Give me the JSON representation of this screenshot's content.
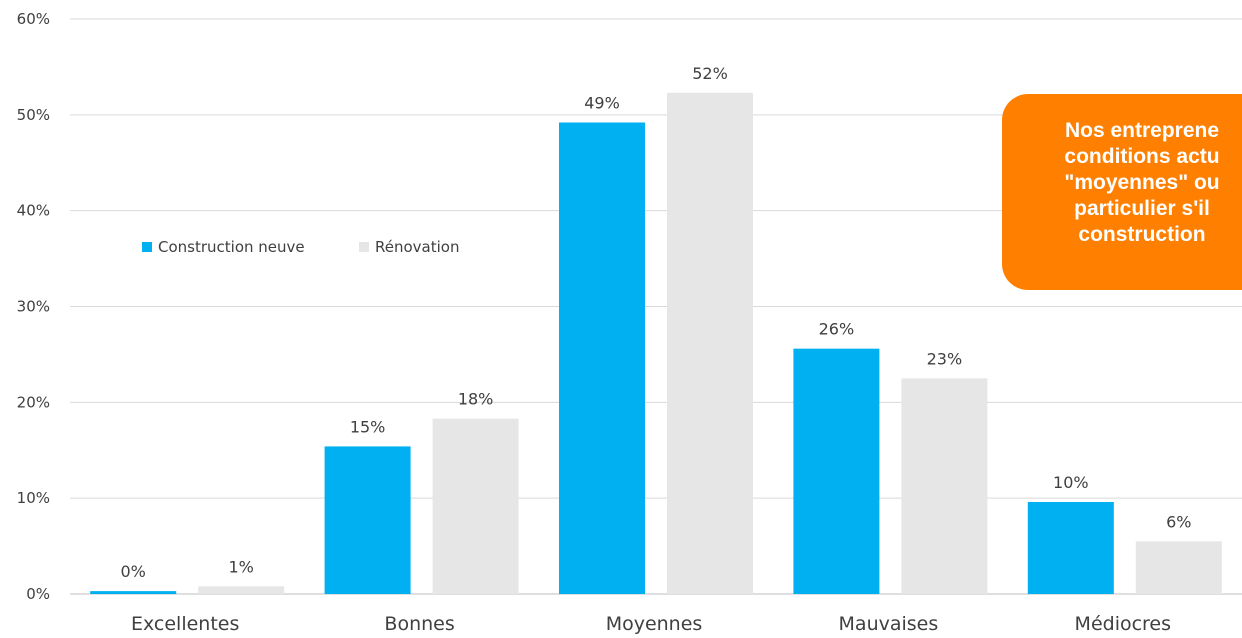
{
  "chart_data": {
    "type": "bar",
    "categories": [
      "Excellentes",
      "Bonnes",
      "Moyennes",
      "Mauvaises",
      "Médiocres"
    ],
    "series": [
      {
        "name": "Construction neuve",
        "color": "#00b0f0",
        "values": [
          0.3,
          15.4,
          49.2,
          25.6,
          9.6
        ],
        "labels": [
          "0%",
          "15%",
          "49%",
          "26%",
          "10%"
        ]
      },
      {
        "name": "Rénovation",
        "color": "#e7e6e6",
        "values": [
          0.8,
          18.3,
          52.3,
          22.5,
          5.5
        ],
        "labels": [
          "1%",
          "18%",
          "52%",
          "23%",
          "6%"
        ]
      }
    ],
    "yticks": [
      "0%",
      "10%",
      "20%",
      "30%",
      "40%",
      "50%",
      "60%"
    ],
    "ylim": [
      0,
      60
    ],
    "grid": true,
    "legend_position": "upper-left"
  },
  "callout": {
    "lines": [
      "Nos entreprene",
      "conditions actu",
      "\"moyennes\" ou",
      "particulier s'il",
      "construction"
    ],
    "color": "#ff7f00"
  }
}
